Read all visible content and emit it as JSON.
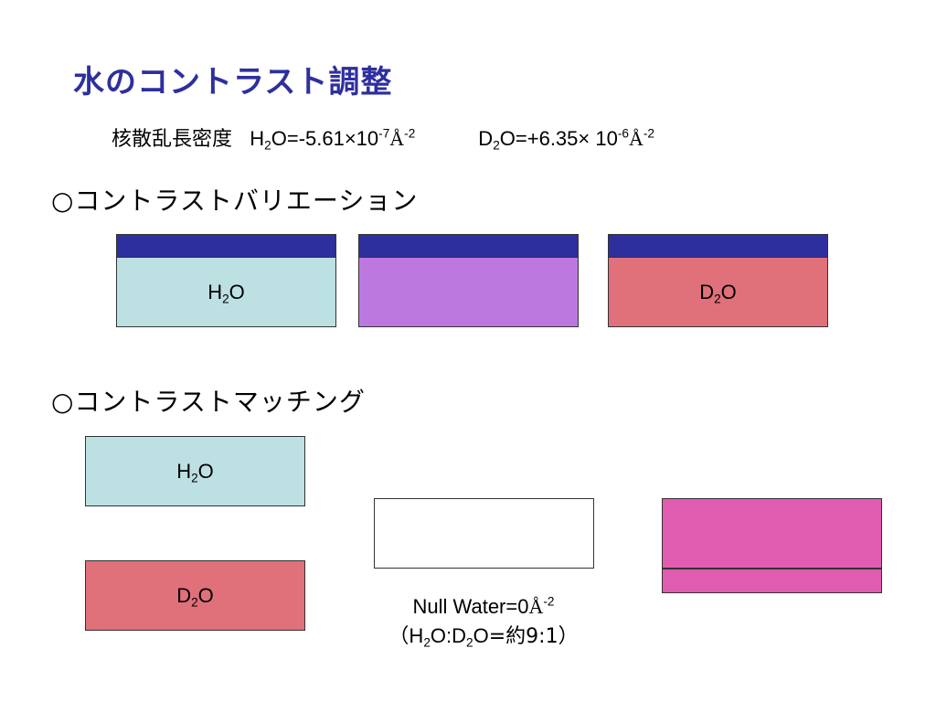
{
  "slide": {
    "title": "水のコントラスト調整",
    "sld_line": {
      "label": "核散乱長密度",
      "h2o_value": "=-5.61×10",
      "h2o_exp": "-7",
      "unit_exp": "-2",
      "d2o_value": "=+6.35× 10",
      "d2o_exp": "-6",
      "d2o_unit_exp": "-2"
    },
    "section_variation": "○コントラストバリエーション",
    "section_matching": "○コントラストマッチング",
    "null_water": {
      "line1": "Null Water=0",
      "line1_exp": "-2",
      "line2_open": "（",
      "line2_ratio": "=約9:1",
      "line2_close": "）"
    }
  },
  "chem": {
    "h": "H",
    "d": "D",
    "o": "O",
    "two": "2",
    "colon": ":"
  },
  "symbols": {
    "angstrom": "Å"
  },
  "colors": {
    "title": "#2e2f9e",
    "cap": "#2e2f9e",
    "h2o": "#bde0e3",
    "d2o": "#e0707a",
    "mix": "#bd78e0",
    "matched": "#e05cb0"
  }
}
